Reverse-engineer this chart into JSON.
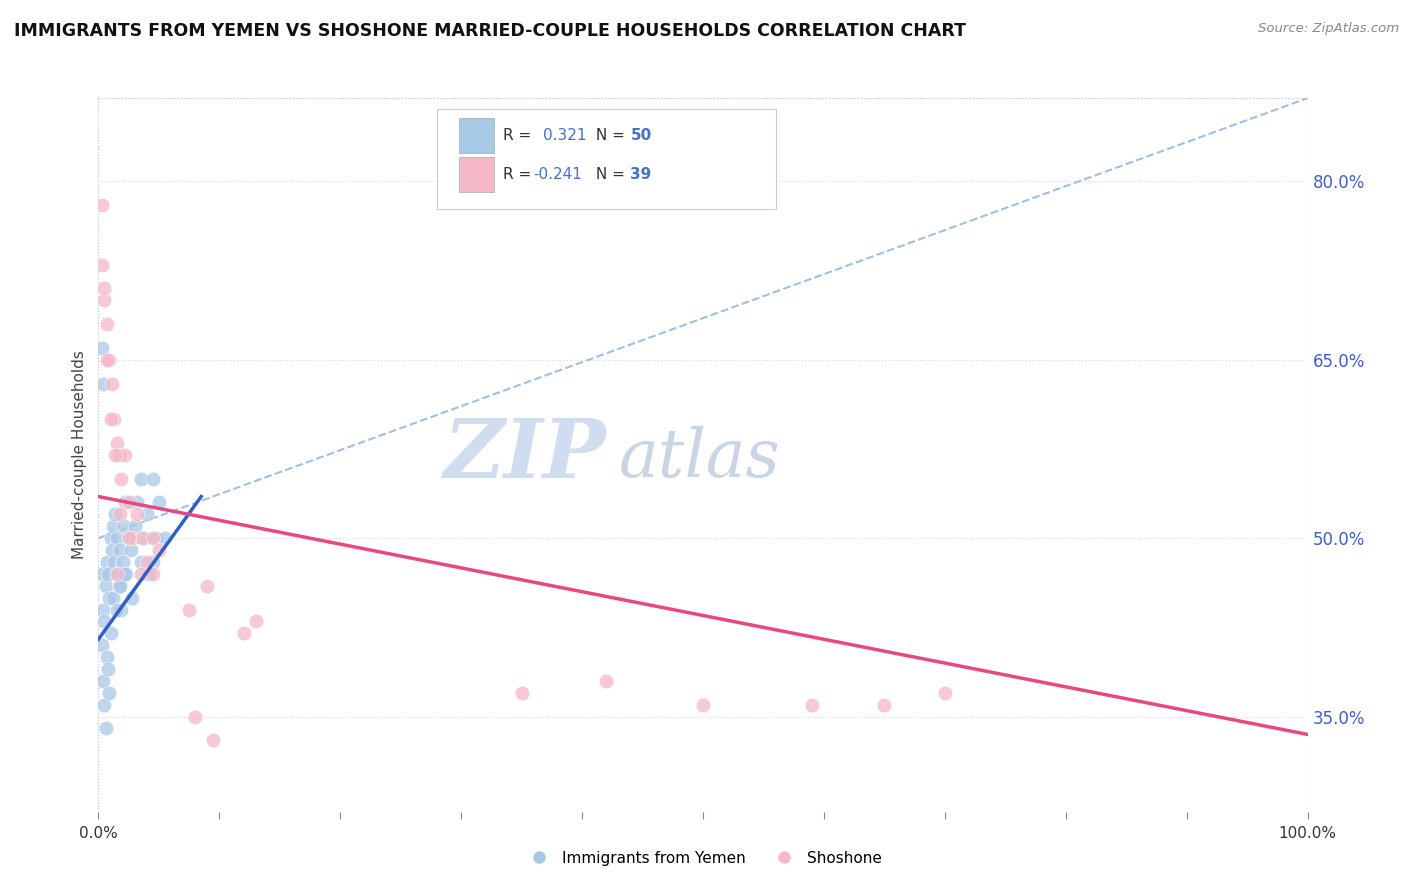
{
  "title": "IMMIGRANTS FROM YEMEN VS SHOSHONE MARRIED-COUPLE HOUSEHOLDS CORRELATION CHART",
  "source": "Source: ZipAtlas.com",
  "ylabel": "Married-couple Households",
  "xlim": [
    0.0,
    1.0
  ],
  "ylim": [
    0.27,
    0.87
  ],
  "yticks": [
    0.35,
    0.5,
    0.65,
    0.8
  ],
  "ytick_labels": [
    "35.0%",
    "50.0%",
    "65.0%",
    "80.0%"
  ],
  "xticks": [
    0.0,
    0.1,
    0.2,
    0.3,
    0.4,
    0.5,
    0.6,
    0.7,
    0.8,
    0.9,
    1.0
  ],
  "xtick_label_show": [
    0.0,
    1.0
  ],
  "legend_r1_text": "R =  0.321  N = 50",
  "legend_r2_text": "R = -0.241  N = 39",
  "blue_color": "#a8c8e8",
  "pink_color": "#f4b8c8",
  "blue_line_color": "#3060c0",
  "pink_line_color": "#e84880",
  "diag_color": "#a0c0e0",
  "watermark_zip": "ZIP",
  "watermark_atlas": "atlas",
  "grid_color": "#d8d8e8",
  "border_color": "#c0c0d0",
  "right_label_color": "#4060c0",
  "blue_scatter_x": [
    0.003,
    0.004,
    0.005,
    0.006,
    0.007,
    0.008,
    0.009,
    0.01,
    0.011,
    0.012,
    0.013,
    0.014,
    0.015,
    0.016,
    0.017,
    0.018,
    0.019,
    0.02,
    0.021,
    0.022,
    0.023,
    0.025,
    0.027,
    0.03,
    0.032,
    0.035,
    0.038,
    0.04,
    0.042,
    0.045,
    0.048,
    0.05,
    0.003,
    0.004,
    0.005,
    0.006,
    0.007,
    0.008,
    0.009,
    0.01,
    0.012,
    0.015,
    0.018,
    0.022,
    0.028,
    0.035,
    0.045,
    0.055,
    0.003,
    0.004
  ],
  "blue_scatter_y": [
    0.47,
    0.44,
    0.43,
    0.46,
    0.48,
    0.47,
    0.45,
    0.5,
    0.49,
    0.51,
    0.48,
    0.52,
    0.5,
    0.47,
    0.46,
    0.49,
    0.44,
    0.48,
    0.51,
    0.53,
    0.47,
    0.5,
    0.49,
    0.51,
    0.53,
    0.55,
    0.5,
    0.52,
    0.47,
    0.55,
    0.5,
    0.53,
    0.41,
    0.38,
    0.36,
    0.34,
    0.4,
    0.39,
    0.37,
    0.42,
    0.45,
    0.44,
    0.46,
    0.47,
    0.45,
    0.48,
    0.48,
    0.5,
    0.66,
    0.63
  ],
  "pink_scatter_x": [
    0.003,
    0.005,
    0.007,
    0.009,
    0.011,
    0.013,
    0.015,
    0.017,
    0.019,
    0.022,
    0.025,
    0.028,
    0.032,
    0.036,
    0.04,
    0.045,
    0.05,
    0.003,
    0.005,
    0.007,
    0.01,
    0.014,
    0.018,
    0.025,
    0.035,
    0.045,
    0.09,
    0.13,
    0.35,
    0.5,
    0.65,
    0.7,
    0.42,
    0.59,
    0.08,
    0.095,
    0.015,
    0.075,
    0.12
  ],
  "pink_scatter_y": [
    0.78,
    0.7,
    0.68,
    0.65,
    0.63,
    0.6,
    0.58,
    0.57,
    0.55,
    0.57,
    0.53,
    0.5,
    0.52,
    0.5,
    0.48,
    0.5,
    0.49,
    0.73,
    0.71,
    0.65,
    0.6,
    0.57,
    0.52,
    0.5,
    0.47,
    0.47,
    0.46,
    0.43,
    0.37,
    0.36,
    0.36,
    0.37,
    0.38,
    0.36,
    0.35,
    0.33,
    0.47,
    0.44,
    0.42
  ],
  "blue_line_x": [
    0.0,
    0.085
  ],
  "blue_line_y": [
    0.415,
    0.535
  ],
  "pink_line_x": [
    0.0,
    1.0
  ],
  "pink_line_y": [
    0.535,
    0.335
  ],
  "diag_line_x": [
    0.0,
    1.0
  ],
  "diag_line_y": [
    0.5,
    0.87
  ]
}
